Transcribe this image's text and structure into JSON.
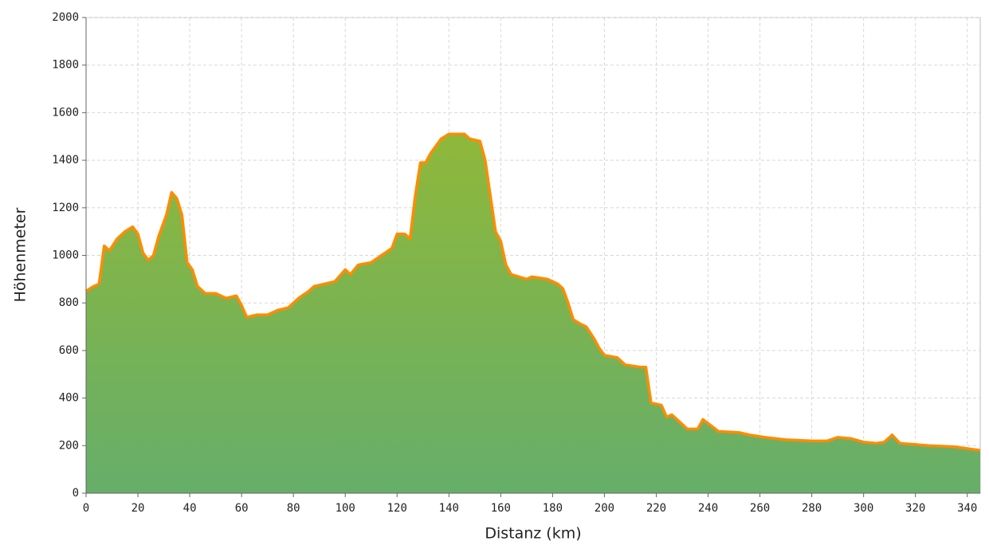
{
  "chart_data": {
    "type": "area",
    "x_label": "Distanz (km)",
    "y_label": "Höhenmeter",
    "x": [
      0,
      3,
      5,
      7,
      9,
      12,
      15,
      18,
      20,
      22,
      24,
      26,
      28,
      31,
      33,
      35,
      37,
      39,
      41,
      43,
      46,
      50,
      54,
      58,
      60,
      62,
      66,
      70,
      74,
      78,
      82,
      86,
      88,
      92,
      96,
      100,
      102,
      105,
      110,
      114,
      118,
      120,
      123,
      125,
      127,
      129,
      131,
      133,
      137,
      140,
      146,
      148,
      152,
      154,
      156,
      158,
      160,
      162,
      164,
      170,
      172,
      178,
      182,
      184,
      186,
      188,
      191,
      193,
      196,
      198,
      200,
      205,
      208,
      214,
      216,
      218,
      222,
      224,
      226,
      229,
      232,
      236,
      238,
      241,
      244,
      252,
      256,
      262,
      270,
      280,
      286,
      290,
      295,
      300,
      305,
      308,
      311,
      314,
      320,
      325,
      335,
      345
    ],
    "series": [
      {
        "color": "#ff8c00",
        "values": [
          850,
          870,
          880,
          1040,
          1020,
          1070,
          1100,
          1120,
          1090,
          1010,
          980,
          1000,
          1080,
          1170,
          1265,
          1240,
          1170,
          970,
          940,
          870,
          840,
          840,
          820,
          830,
          790,
          740,
          750,
          750,
          770,
          780,
          820,
          850,
          870,
          880,
          890,
          940,
          920,
          960,
          970,
          1000,
          1030,
          1090,
          1090,
          1070,
          1250,
          1390,
          1390,
          1430,
          1490,
          1510,
          1510,
          1490,
          1480,
          1400,
          1250,
          1100,
          1060,
          960,
          920,
          900,
          910,
          900,
          880,
          860,
          800,
          730,
          710,
          700,
          650,
          610,
          580,
          570,
          540,
          530,
          530,
          380,
          370,
          320,
          330,
          300,
          270,
          270,
          310,
          285,
          260,
          255,
          245,
          235,
          225,
          220,
          220,
          235,
          230,
          215,
          210,
          215,
          245,
          210,
          205,
          200,
          195,
          180
        ]
      }
    ],
    "fill_top_color": "#8fb83a",
    "fill_bottom_color": "#66ae6a",
    "xlim": [
      0,
      345
    ],
    "xticks": [
      0,
      20,
      40,
      60,
      80,
      100,
      120,
      140,
      160,
      180,
      200,
      220,
      240,
      260,
      280,
      300,
      320,
      340
    ],
    "ylim": [
      0,
      2000
    ],
    "yticks": [
      0,
      200,
      400,
      600,
      800,
      1000,
      1200,
      1400,
      1600,
      1800,
      2000
    ],
    "grid": true
  }
}
